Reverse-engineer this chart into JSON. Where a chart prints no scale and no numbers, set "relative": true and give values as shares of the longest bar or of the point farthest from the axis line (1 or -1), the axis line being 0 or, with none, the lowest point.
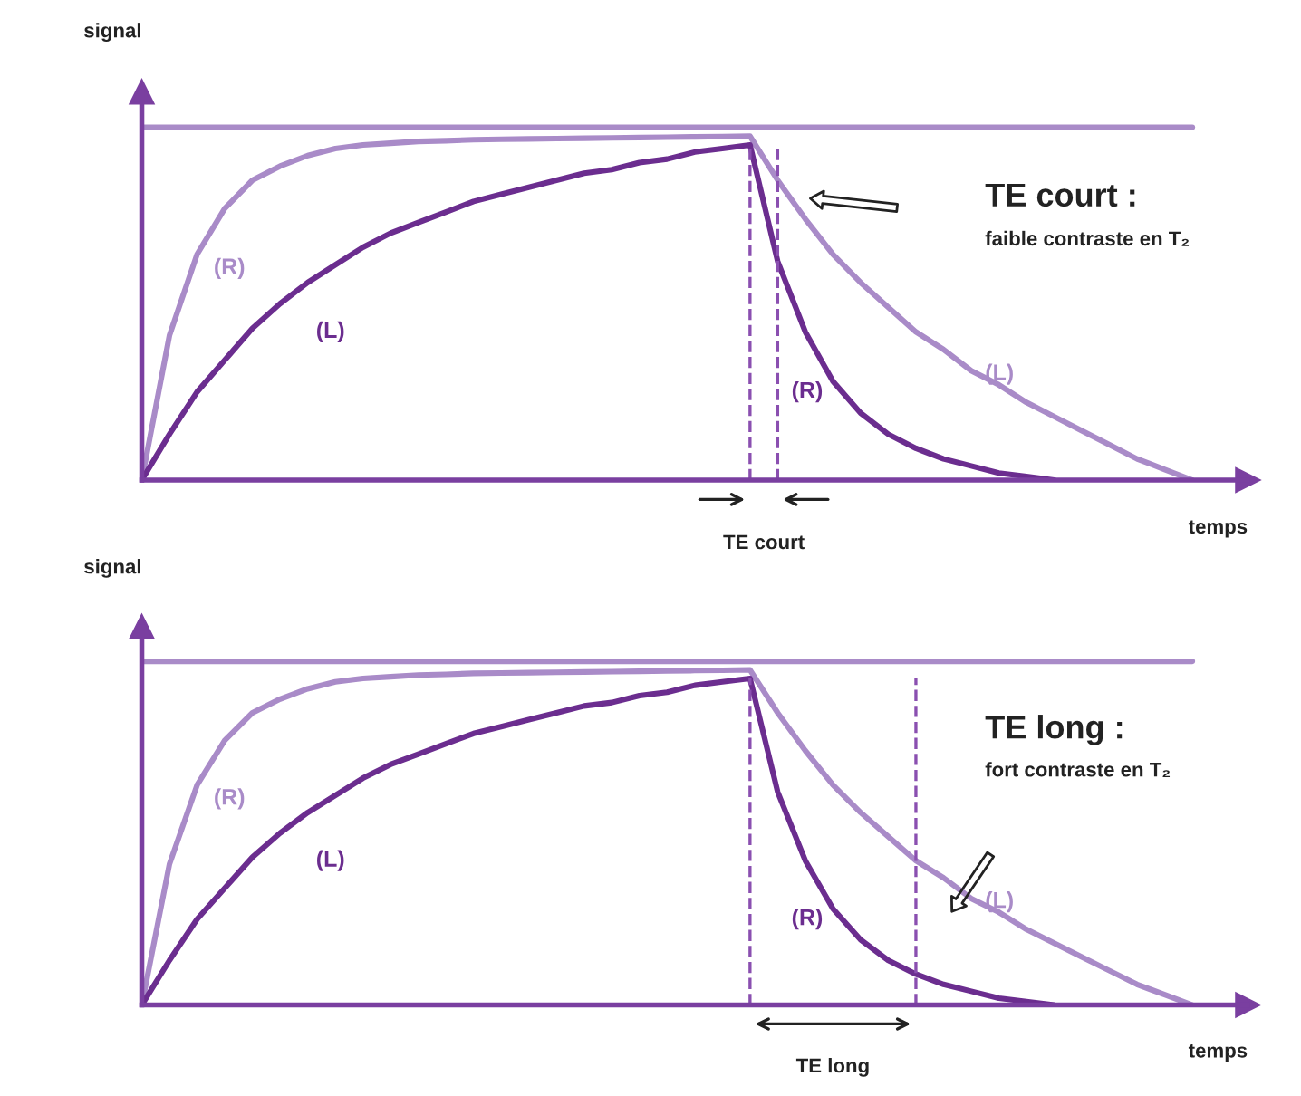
{
  "chart_data": [
    {
      "type": "line",
      "relative": true,
      "xlabel": "temps",
      "ylabel": "signal",
      "line_style": "solid",
      "categories": [
        null,
        null,
        null,
        null,
        null,
        null,
        null,
        null,
        null,
        null,
        null,
        null,
        null,
        null,
        null,
        null,
        null,
        null,
        null,
        null,
        null,
        null,
        null,
        null,
        null,
        null,
        null,
        null,
        null,
        null,
        null,
        null,
        null,
        null,
        null,
        null,
        null,
        null,
        null,
        null
      ],
      "series": [
        {
          "color": "#a98bc8",
          "values": [
            1,
            1,
            1,
            1,
            1,
            1,
            1,
            1,
            1,
            1,
            1,
            1,
            1,
            1,
            1,
            1,
            1,
            1,
            1,
            1,
            1,
            1,
            1,
            1,
            1,
            1,
            1,
            1,
            1,
            1,
            1,
            1,
            1,
            1,
            1,
            1,
            1,
            1,
            1,
            null
          ]
        },
        {
          "color": "#a98bc8",
          "values": [
            0,
            0.41,
            0.64,
            0.77,
            0.85,
            0.89,
            0.92,
            0.94,
            0.95,
            0.955,
            0.96,
            0.962,
            0.965,
            0.966,
            0.967,
            0.968,
            0.969,
            0.97,
            0.971,
            0.972,
            0.973,
            0.974,
            0.975,
            0.85,
            0.74,
            0.64,
            0.56,
            0.49,
            0.42,
            0.37,
            0.31,
            0.27,
            0.22,
            0.18,
            0.14,
            0.1,
            0.06,
            0.03,
            0,
            null
          ]
        },
        {
          "color": "#6b2d8f",
          "values": [
            0,
            0.13,
            0.25,
            0.34,
            0.43,
            0.5,
            0.56,
            0.61,
            0.66,
            0.7,
            0.73,
            0.76,
            0.79,
            0.81,
            0.83,
            0.85,
            0.87,
            0.88,
            0.9,
            0.91,
            0.93,
            0.94,
            0.95,
            0.62,
            0.42,
            0.28,
            0.19,
            0.13,
            0.09,
            0.06,
            0.04,
            0.02,
            0.01,
            0,
            null,
            null,
            null,
            null,
            null,
            null
          ]
        }
      ],
      "annotations": [
        "(R)",
        "(L)",
        "(L)",
        "(R)",
        "TE court :",
        "faible contraste en T₂",
        "TE court"
      ]
    },
    {
      "type": "line",
      "relative": true,
      "xlabel": "temps",
      "ylabel": "signal",
      "line_style": "solid",
      "categories": [
        null,
        null,
        null,
        null,
        null,
        null,
        null,
        null,
        null,
        null,
        null,
        null,
        null,
        null,
        null,
        null,
        null,
        null,
        null,
        null,
        null,
        null,
        null,
        null,
        null,
        null,
        null,
        null,
        null,
        null,
        null,
        null,
        null,
        null,
        null,
        null,
        null,
        null,
        null,
        null
      ],
      "series": [
        {
          "color": "#a98bc8",
          "values": [
            1,
            1,
            1,
            1,
            1,
            1,
            1,
            1,
            1,
            1,
            1,
            1,
            1,
            1,
            1,
            1,
            1,
            1,
            1,
            1,
            1,
            1,
            1,
            1,
            1,
            1,
            1,
            1,
            1,
            1,
            1,
            1,
            1,
            1,
            1,
            1,
            1,
            1,
            1,
            null
          ]
        },
        {
          "color": "#a98bc8",
          "values": [
            0,
            0.41,
            0.64,
            0.77,
            0.85,
            0.89,
            0.92,
            0.94,
            0.95,
            0.955,
            0.96,
            0.962,
            0.965,
            0.966,
            0.967,
            0.968,
            0.969,
            0.97,
            0.971,
            0.972,
            0.973,
            0.974,
            0.975,
            0.85,
            0.74,
            0.64,
            0.56,
            0.49,
            0.42,
            0.37,
            0.31,
            0.27,
            0.22,
            0.18,
            0.14,
            0.1,
            0.06,
            0.03,
            0,
            null
          ]
        },
        {
          "color": "#6b2d8f",
          "values": [
            0,
            0.13,
            0.25,
            0.34,
            0.43,
            0.5,
            0.56,
            0.61,
            0.66,
            0.7,
            0.73,
            0.76,
            0.79,
            0.81,
            0.83,
            0.85,
            0.87,
            0.88,
            0.9,
            0.91,
            0.93,
            0.94,
            0.95,
            0.62,
            0.42,
            0.28,
            0.19,
            0.13,
            0.09,
            0.06,
            0.04,
            0.02,
            0.01,
            0,
            null,
            null,
            null,
            null,
            null,
            null
          ]
        }
      ],
      "annotations": [
        "(R)",
        "(L)",
        "(L)",
        "(R)",
        "TE long :",
        "fort contraste en T₂",
        "TE long"
      ]
    }
  ]
}
